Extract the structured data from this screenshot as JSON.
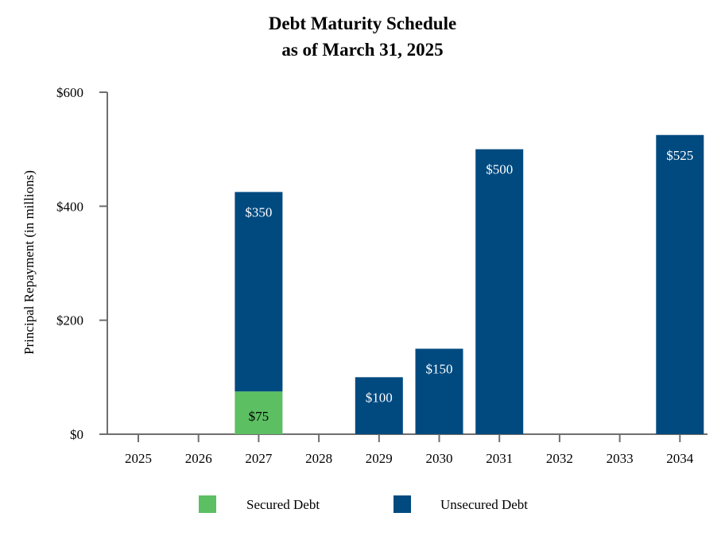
{
  "chart_data": {
    "type": "bar",
    "stacked": true,
    "title": "Debt Maturity Schedule",
    "subtitle": "as of March 31, 2025",
    "xlabel": "",
    "ylabel": "Principal Repayment (in millions)",
    "ylim": [
      0,
      600
    ],
    "yticks": [
      0,
      200,
      400,
      600
    ],
    "ytick_labels": [
      "$0",
      "$200",
      "$400",
      "$600"
    ],
    "categories": [
      "2025",
      "2026",
      "2027",
      "2028",
      "2029",
      "2030",
      "2031",
      "2032",
      "2033",
      "2034"
    ],
    "grid": false,
    "legend_position": "bottom",
    "series": [
      {
        "name": "Secured Debt",
        "color": "#5cbf62",
        "values": [
          0,
          0,
          75,
          0,
          0,
          0,
          0,
          0,
          0,
          0
        ],
        "labels": [
          "",
          "",
          "$75",
          "",
          "",
          "",
          "",
          "",
          "",
          ""
        ]
      },
      {
        "name": "Unsecured Debt",
        "color": "#004a80",
        "values": [
          0,
          0,
          350,
          0,
          100,
          150,
          500,
          0,
          0,
          525
        ],
        "labels": [
          "",
          "",
          "$350",
          "",
          "$100",
          "$150",
          "$500",
          "",
          "",
          "$525"
        ]
      }
    ]
  }
}
